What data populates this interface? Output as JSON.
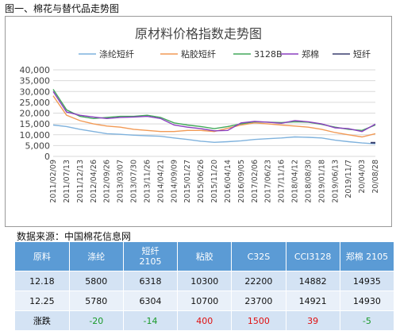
{
  "caption": "图一、棉花与替代品走势图",
  "source": "数据来源：中国棉花信息网",
  "chart_data": {
    "type": "line",
    "title": "原材料价格指数走势图",
    "ylim": [
      0,
      40000
    ],
    "yticks": [
      "0",
      "5,000",
      "10,000",
      "15,000",
      "20,000",
      "25,000",
      "30,000",
      "35,000",
      "40,000"
    ],
    "grid": true,
    "legend": "top",
    "x": [
      "2011/02/09",
      "2011/07/13",
      "2011/12/13",
      "2012/04/26",
      "2012/09/26",
      "2013/03/07",
      "2013/07/30",
      "2013/11/26",
      "2014/04/21",
      "2014/09/09",
      "2015/01/27",
      "2015/06/26",
      "2015/11/20",
      "2016/04/14",
      "2016/09/05",
      "2017/02/06",
      "2017/06/23",
      "2017/11/16",
      "2018/04/12",
      "2018/08/30",
      "2019/01/18",
      "2019/06/13",
      "2019/11/7",
      "20/04/03",
      "20/08/28"
    ],
    "series": [
      {
        "name": "涤纶短纤",
        "color": "#7fb2dd",
        "values": [
          14500,
          13800,
          12500,
          11500,
          10500,
          10200,
          9800,
          9500,
          9300,
          8500,
          7800,
          7000,
          6500,
          6800,
          7200,
          7800,
          8200,
          8500,
          9000,
          8800,
          8500,
          7500,
          6800,
          6200,
          5800
        ]
      },
      {
        "name": "粘胶短纤",
        "color": "#f29a55",
        "values": [
          28000,
          19000,
          16500,
          15000,
          14000,
          13500,
          12500,
          12000,
          11500,
          11500,
          12000,
          12000,
          11500,
          13000,
          14500,
          15500,
          15000,
          14500,
          14000,
          13500,
          12500,
          11000,
          10000,
          9000,
          10500
        ]
      },
      {
        "name": "3128B",
        "color": "#42a85b",
        "values": [
          31000,
          21500,
          18500,
          17500,
          18000,
          18500,
          18500,
          19000,
          18000,
          15500,
          14500,
          13800,
          12800,
          13800,
          15000,
          16000,
          15800,
          15600,
          16000,
          15800,
          14800,
          13500,
          12500,
          12000,
          14500
        ]
      },
      {
        "name": "郑棉",
        "color": "#8a3fbf",
        "values": [
          30000,
          20500,
          19000,
          18200,
          17500,
          18000,
          18200,
          18500,
          17500,
          14500,
          13500,
          12800,
          11800,
          12000,
          15500,
          16200,
          15800,
          15300,
          16500,
          16000,
          15000,
          13200,
          12800,
          11500,
          14900
        ]
      },
      {
        "name": "短纤",
        "color": "#3a3f6e",
        "values": [
          null,
          null,
          null,
          null,
          null,
          null,
          null,
          null,
          null,
          null,
          null,
          null,
          null,
          null,
          null,
          null,
          null,
          null,
          null,
          null,
          null,
          null,
          null,
          null,
          6300
        ]
      }
    ]
  },
  "table": {
    "headers": [
      "原料",
      "涤纶",
      "短纤\n2105",
      "粘胶",
      "C32S",
      "CCI3128",
      "郑棉 2105"
    ],
    "rows": [
      [
        "12.18",
        "5800",
        "6318",
        "10300",
        "22200",
        "14882",
        "14935"
      ],
      [
        "12.25",
        "5780",
        "6304",
        "10700",
        "23700",
        "14921",
        "14930"
      ],
      [
        "涨跌",
        "-20",
        "-14",
        "400",
        "1500",
        "39",
        "-5"
      ]
    ]
  }
}
